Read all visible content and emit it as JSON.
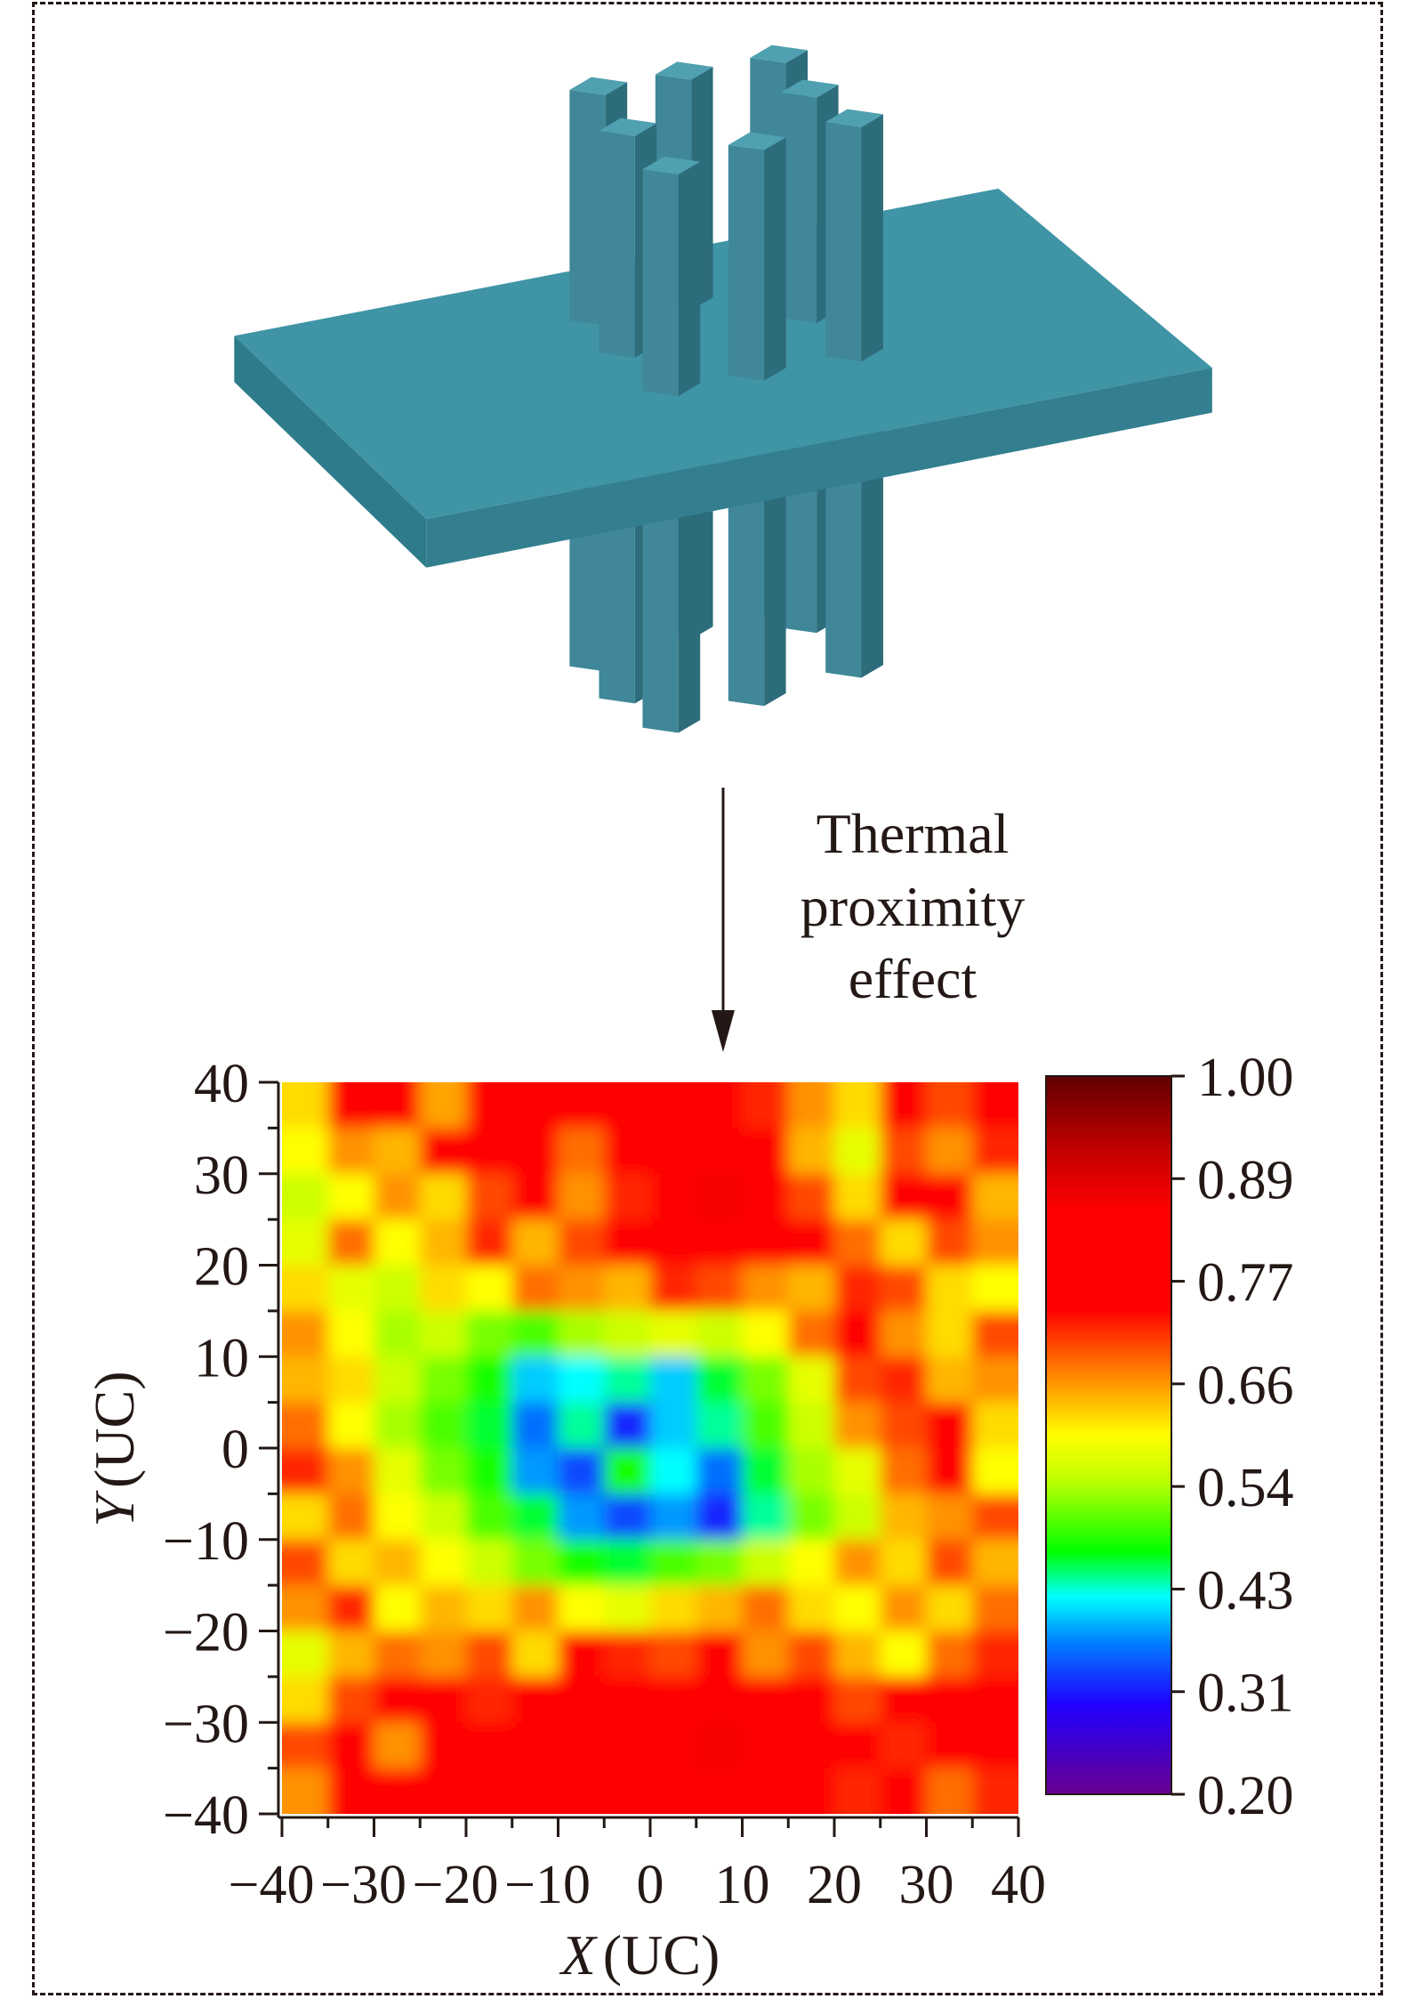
{
  "annotation": {
    "lines": [
      "Thermal",
      "proximity",
      "effect"
    ]
  },
  "chart_data": {
    "type": "heatmap",
    "xlabel_var": "X",
    "xlabel_unit": "(UC)",
    "ylabel_var": "Y",
    "ylabel_unit": "(UC)",
    "xlim": [
      -40,
      40
    ],
    "ylim": [
      -40,
      40
    ],
    "xticks": [
      "−40",
      "−30",
      "−20",
      "−10",
      "0",
      "10",
      "20",
      "30",
      "40"
    ],
    "yticks": [
      "40",
      "30",
      "20",
      "10",
      "0",
      "−10",
      "−20",
      "−30",
      "−40"
    ],
    "colorbar": {
      "ticks": [
        "1.00",
        "0.89",
        "0.77",
        "0.66",
        "0.54",
        "0.43",
        "0.31",
        "0.20"
      ],
      "range": [
        0.2,
        1.0
      ]
    },
    "grid_step": 5,
    "values_top_to_bottom": [
      [
        0.62,
        0.78,
        0.8,
        0.65,
        0.82,
        0.8,
        0.78,
        0.83,
        0.82,
        0.8,
        0.72,
        0.66,
        0.62,
        0.75,
        0.7,
        0.78
      ],
      [
        0.6,
        0.66,
        0.64,
        0.74,
        0.82,
        0.78,
        0.68,
        0.8,
        0.82,
        0.84,
        0.8,
        0.64,
        0.58,
        0.7,
        0.66,
        0.72
      ],
      [
        0.56,
        0.6,
        0.66,
        0.62,
        0.7,
        0.76,
        0.66,
        0.72,
        0.84,
        0.86,
        0.78,
        0.7,
        0.62,
        0.78,
        0.74,
        0.64
      ],
      [
        0.58,
        0.68,
        0.6,
        0.64,
        0.72,
        0.64,
        0.7,
        0.78,
        0.8,
        0.82,
        0.74,
        0.76,
        0.68,
        0.62,
        0.7,
        0.66
      ],
      [
        0.62,
        0.58,
        0.56,
        0.62,
        0.6,
        0.68,
        0.66,
        0.64,
        0.72,
        0.7,
        0.66,
        0.64,
        0.72,
        0.7,
        0.62,
        0.6
      ],
      [
        0.66,
        0.6,
        0.54,
        0.56,
        0.52,
        0.5,
        0.54,
        0.56,
        0.58,
        0.56,
        0.6,
        0.68,
        0.74,
        0.66,
        0.62,
        0.7
      ],
      [
        0.64,
        0.62,
        0.56,
        0.52,
        0.48,
        0.4,
        0.42,
        0.44,
        0.4,
        0.46,
        0.52,
        0.58,
        0.7,
        0.72,
        0.64,
        0.66
      ],
      [
        0.68,
        0.6,
        0.54,
        0.5,
        0.46,
        0.36,
        0.44,
        0.32,
        0.4,
        0.44,
        0.5,
        0.56,
        0.66,
        0.7,
        0.74,
        0.62
      ],
      [
        0.72,
        0.66,
        0.58,
        0.52,
        0.48,
        0.38,
        0.34,
        0.48,
        0.42,
        0.36,
        0.46,
        0.54,
        0.58,
        0.68,
        0.76,
        0.6
      ],
      [
        0.62,
        0.68,
        0.6,
        0.56,
        0.5,
        0.46,
        0.38,
        0.34,
        0.38,
        0.32,
        0.44,
        0.52,
        0.56,
        0.64,
        0.66,
        0.7
      ],
      [
        0.7,
        0.62,
        0.64,
        0.6,
        0.56,
        0.52,
        0.48,
        0.46,
        0.5,
        0.52,
        0.56,
        0.6,
        0.66,
        0.62,
        0.7,
        0.64
      ],
      [
        0.66,
        0.72,
        0.6,
        0.64,
        0.62,
        0.66,
        0.6,
        0.58,
        0.62,
        0.64,
        0.68,
        0.62,
        0.6,
        0.66,
        0.62,
        0.68
      ],
      [
        0.58,
        0.64,
        0.68,
        0.66,
        0.7,
        0.62,
        0.76,
        0.72,
        0.7,
        0.74,
        0.66,
        0.7,
        0.64,
        0.6,
        0.68,
        0.72
      ],
      [
        0.62,
        0.7,
        0.74,
        0.78,
        0.72,
        0.8,
        0.82,
        0.76,
        0.8,
        0.78,
        0.82,
        0.74,
        0.7,
        0.78,
        0.76,
        0.8
      ],
      [
        0.7,
        0.78,
        0.66,
        0.8,
        0.82,
        0.76,
        0.84,
        0.82,
        0.78,
        0.86,
        0.8,
        0.82,
        0.76,
        0.72,
        0.8,
        0.74
      ],
      [
        0.66,
        0.74,
        0.8,
        0.76,
        0.84,
        0.78,
        0.8,
        0.76,
        0.82,
        0.74,
        0.8,
        0.78,
        0.72,
        0.76,
        0.68,
        0.72
      ]
    ]
  },
  "colors": {
    "model_top": "#3f94a6",
    "model_side": "#2e7b8b",
    "model_front": "#337f90",
    "ink": "#231815"
  }
}
